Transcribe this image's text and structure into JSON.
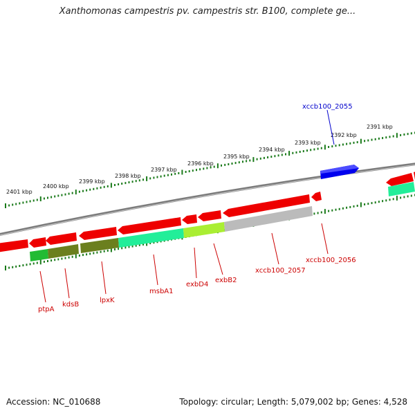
{
  "title": "Xanthomonas campestris pv. campestris str. B100, complete ge...",
  "footer": {
    "accession": "Accession: NC_010688",
    "summary": "Topology: circular; Length: 5,079,002 bp; Genes: 4,528"
  },
  "colors": {
    "backbone": "#8a8a8a",
    "tick": "#1a7a1a",
    "forward_gene": "#0000ee",
    "reverse_gene": "#ee0000",
    "forward_label": "#0000cc",
    "reverse_label": "#cc0000"
  },
  "scale_ticks": [
    "2401 kbp",
    "2400 kbp",
    "2399 kbp",
    "2398 kbp",
    "2397 kbp",
    "2396 kbp",
    "2395 kbp",
    "2394 kbp",
    "2393 kbp",
    "2392 kbp",
    "2391 kbp"
  ],
  "genes": {
    "forward": [
      "xccb100_2055"
    ],
    "reverse": [
      "ptpA",
      "kdsB",
      "lpxK",
      "msbA1",
      "exbD4",
      "exbB2",
      "xccb100_2057",
      "xccb100_2056"
    ]
  }
}
